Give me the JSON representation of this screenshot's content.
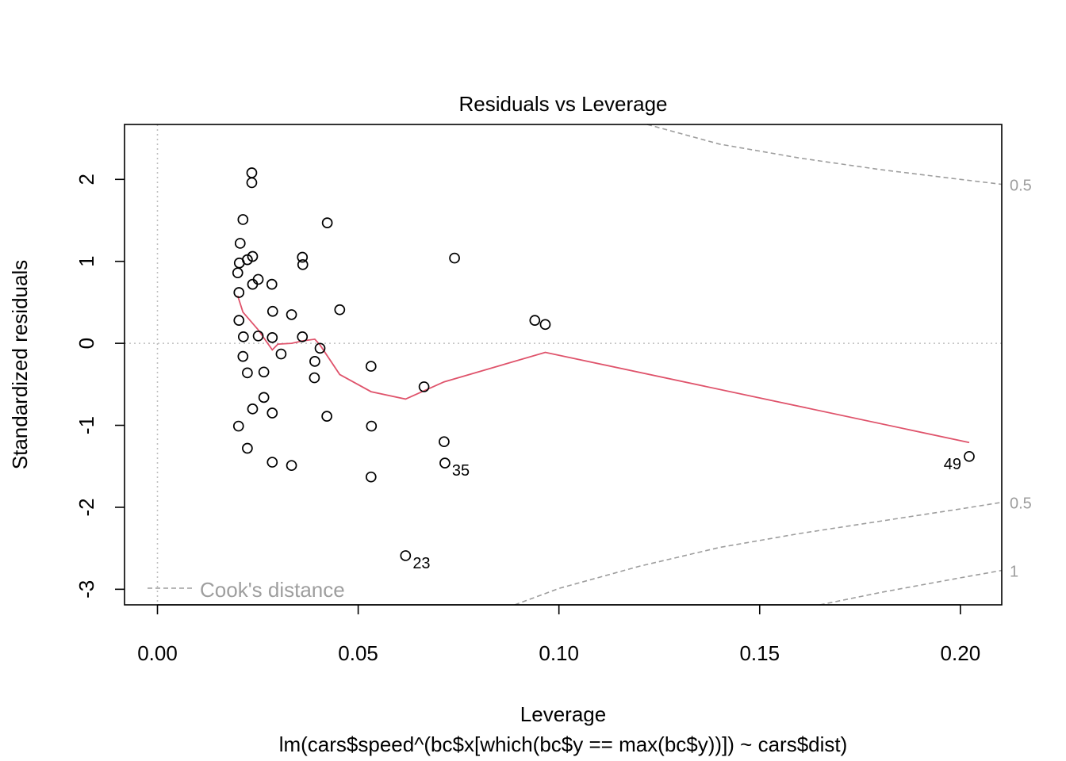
{
  "chart_data": {
    "type": "scatter",
    "title": "Residuals vs Leverage",
    "xlabel": "Leverage",
    "ylabel": "Standardized residuals",
    "subtitle": "lm(cars$speed^(bc$x[which(bc$y == max(bc$y))]) ~ cars$dist)",
    "xlim": [
      -0.0082,
      0.2103
    ],
    "ylim": [
      -3.19,
      2.67
    ],
    "x_ticks": [
      0.0,
      0.05,
      0.1,
      0.15,
      0.2
    ],
    "x_tick_labels": [
      "0.00",
      "0.05",
      "0.10",
      "0.15",
      "0.20"
    ],
    "y_ticks": [
      -3,
      -2,
      -1,
      0,
      1,
      2
    ],
    "y_tick_labels": [
      "-3",
      "-2",
      "-1",
      "0",
      "1",
      "2"
    ],
    "grid": false,
    "reference_lines": {
      "h": 0,
      "v": 0
    },
    "points": [
      {
        "x": 0.0235,
        "y": 2.08
      },
      {
        "x": 0.0235,
        "y": 1.96
      },
      {
        "x": 0.0213,
        "y": 1.51
      },
      {
        "x": 0.0423,
        "y": 1.47
      },
      {
        "x": 0.0206,
        "y": 1.22
      },
      {
        "x": 0.0237,
        "y": 1.06
      },
      {
        "x": 0.0224,
        "y": 1.02
      },
      {
        "x": 0.0204,
        "y": 0.98
      },
      {
        "x": 0.02,
        "y": 0.86
      },
      {
        "x": 0.0361,
        "y": 1.05
      },
      {
        "x": 0.0362,
        "y": 0.96
      },
      {
        "x": 0.074,
        "y": 1.04
      },
      {
        "x": 0.0251,
        "y": 0.78
      },
      {
        "x": 0.0237,
        "y": 0.72
      },
      {
        "x": 0.0285,
        "y": 0.72
      },
      {
        "x": 0.0203,
        "y": 0.62
      },
      {
        "x": 0.0454,
        "y": 0.41
      },
      {
        "x": 0.0287,
        "y": 0.39
      },
      {
        "x": 0.0334,
        "y": 0.35
      },
      {
        "x": 0.0203,
        "y": 0.28
      },
      {
        "x": 0.094,
        "y": 0.28
      },
      {
        "x": 0.0966,
        "y": 0.23
      },
      {
        "x": 0.0214,
        "y": 0.08
      },
      {
        "x": 0.0251,
        "y": 0.09
      },
      {
        "x": 0.0286,
        "y": 0.07
      },
      {
        "x": 0.0361,
        "y": 0.08
      },
      {
        "x": 0.0405,
        "y": -0.06
      },
      {
        "x": 0.0213,
        "y": -0.16
      },
      {
        "x": 0.0308,
        "y": -0.13
      },
      {
        "x": 0.0392,
        "y": -0.22
      },
      {
        "x": 0.0532,
        "y": -0.28
      },
      {
        "x": 0.0224,
        "y": -0.36
      },
      {
        "x": 0.0265,
        "y": -0.35
      },
      {
        "x": 0.0391,
        "y": -0.42
      },
      {
        "x": 0.0664,
        "y": -0.53
      },
      {
        "x": 0.0265,
        "y": -0.66
      },
      {
        "x": 0.0237,
        "y": -0.8
      },
      {
        "x": 0.0286,
        "y": -0.85
      },
      {
        "x": 0.0422,
        "y": -0.89
      },
      {
        "x": 0.0202,
        "y": -1.01
      },
      {
        "x": 0.0533,
        "y": -1.01
      },
      {
        "x": 0.0714,
        "y": -1.2
      },
      {
        "x": 0.0224,
        "y": -1.28
      },
      {
        "x": 0.0286,
        "y": -1.45
      },
      {
        "x": 0.0334,
        "y": -1.49
      },
      {
        "x": 0.0716,
        "y": -1.46,
        "label": "35"
      },
      {
        "x": 0.2022,
        "y": -1.38,
        "label": "49"
      },
      {
        "x": 0.0532,
        "y": -1.63
      },
      {
        "x": 0.0618,
        "y": -2.59,
        "label": "23"
      }
    ],
    "smooth_line": {
      "color": "#DF536B",
      "points": [
        [
          0.02,
          0.58
        ],
        [
          0.0213,
          0.38
        ],
        [
          0.025,
          0.17
        ],
        [
          0.0286,
          -0.08
        ],
        [
          0.03,
          -0.01
        ],
        [
          0.0334,
          0.0
        ],
        [
          0.0362,
          0.03
        ],
        [
          0.0392,
          0.05
        ],
        [
          0.0405,
          -0.02
        ],
        [
          0.0454,
          -0.38
        ],
        [
          0.0532,
          -0.59
        ],
        [
          0.0618,
          -0.68
        ],
        [
          0.0714,
          -0.47
        ],
        [
          0.0966,
          -0.11
        ],
        [
          0.2022,
          -1.21
        ]
      ]
    },
    "cooks_distance": {
      "legend": "Cook's distance",
      "color": "#9E9E9E",
      "contours": [
        {
          "label": "0.5",
          "points": [
            [
              0.122,
              2.67
            ],
            [
              0.14,
              2.43
            ],
            [
              0.16,
              2.26
            ],
            [
              0.18,
              2.12
            ],
            [
              0.2,
              2.0
            ],
            [
              0.2103,
              1.94
            ]
          ]
        },
        {
          "label": "0.5",
          "points": [
            [
              0.089,
              -3.19
            ],
            [
              0.1,
              -2.99
            ],
            [
              0.12,
              -2.72
            ],
            [
              0.14,
              -2.49
            ],
            [
              0.16,
              -2.32
            ],
            [
              0.18,
              -2.17
            ],
            [
              0.2,
              -2.02
            ],
            [
              0.2103,
              -1.94
            ]
          ]
        },
        {
          "label": "1",
          "points": [
            [
              0.165,
              -3.19
            ],
            [
              0.18,
              -3.04
            ],
            [
              0.2,
              -2.86
            ],
            [
              0.2103,
              -2.77
            ]
          ]
        }
      ]
    },
    "colors": {
      "points": "#000000",
      "reference": "#BEBEBE",
      "axis": "#000000",
      "label": "#9E9E9E"
    }
  }
}
